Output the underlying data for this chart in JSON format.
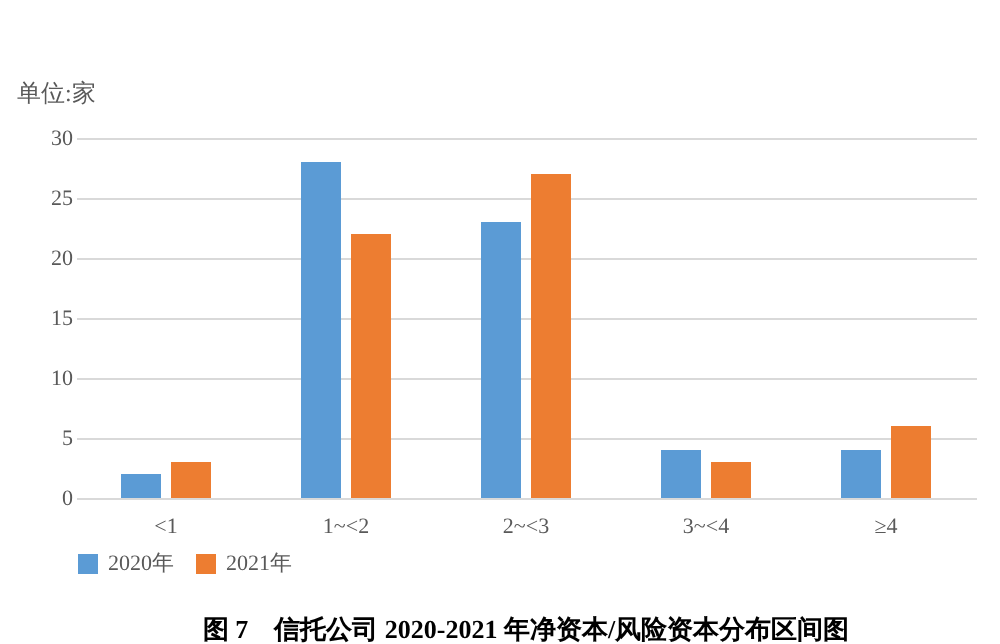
{
  "chart_data": {
    "type": "bar",
    "title": "图 7　信托公司 2020-2021 年净资本/风险资本分布区间图",
    "ylabel": "单位:家",
    "categories": [
      "<1",
      "1~<2",
      "2~<3",
      "3~<4",
      "≥4"
    ],
    "series": [
      {
        "name": "2020年",
        "color": "#5b9bd5",
        "values": [
          2,
          28,
          23,
          4,
          4
        ]
      },
      {
        "name": "2021年",
        "color": "#ed7d31",
        "values": [
          3,
          22,
          27,
          3,
          6
        ]
      }
    ],
    "ylim": [
      0,
      30
    ],
    "yticks": [
      0,
      5,
      10,
      15,
      20,
      25,
      30
    ],
    "grid": "y",
    "legend": "bottom"
  }
}
